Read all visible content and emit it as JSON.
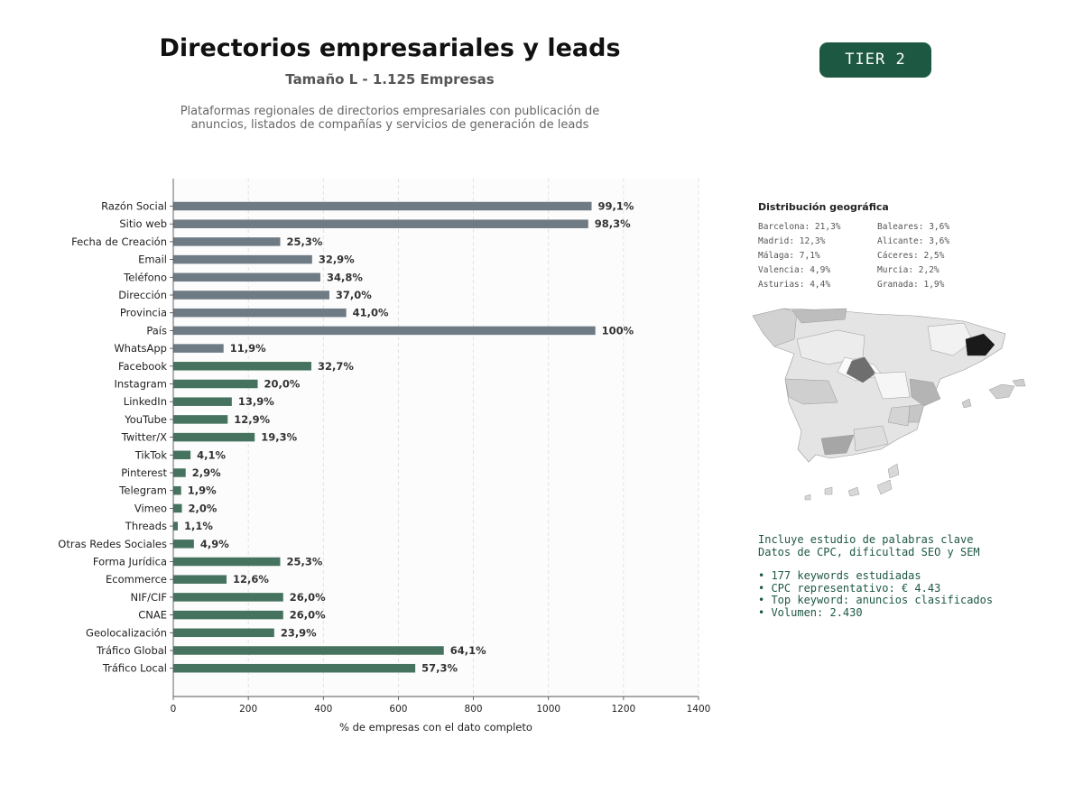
{
  "header": {
    "title": "Directorios empresariales y leads",
    "subtitle": "Tamaño L - 1.125 Empresas",
    "description_line1": "Plataformas regionales de directorios empresariales con publicación de",
    "description_line2": "anuncios, listados de compañías y servicios de generación de leads",
    "tier_badge": "TIER 2"
  },
  "chart_data": {
    "type": "bar",
    "orientation": "horizontal",
    "categories": [
      "Razón Social",
      "Sitio web",
      "Fecha de Creación",
      "Email",
      "Teléfono",
      "Dirección",
      "Provincia",
      "País",
      "WhatsApp",
      "Facebook",
      "Instagram",
      "LinkedIn",
      "YouTube",
      "Twitter/X",
      "TikTok",
      "Pinterest",
      "Telegram",
      "Vimeo",
      "Threads",
      "Otras Redes Sociales",
      "Forma Jurídica",
      "Ecommerce",
      "NIF/CIF",
      "CNAE",
      "Geolocalización",
      "Tráfico Global",
      "Tráfico Local"
    ],
    "values": [
      1115,
      1106,
      285,
      370,
      392,
      416,
      461,
      1125,
      134,
      368,
      225,
      156,
      145,
      217,
      46,
      33,
      21,
      23,
      12,
      55,
      285,
      142,
      293,
      293,
      269,
      721,
      645
    ],
    "data_labels": [
      "99,1%",
      "98,3%",
      "25,3%",
      "32,9%",
      "34,8%",
      "37,0%",
      "41,0%",
      "100%",
      "11,9%",
      "32,7%",
      "20,0%",
      "13,9%",
      "12,9%",
      "19,3%",
      "4,1%",
      "2,9%",
      "1,9%",
      "2,0%",
      "1,1%",
      "4,9%",
      "25,3%",
      "12,6%",
      "26,0%",
      "26,0%",
      "23,9%",
      "64,1%",
      "57,3%"
    ],
    "groups": [
      "basic",
      "basic",
      "basic",
      "basic",
      "basic",
      "basic",
      "basic",
      "basic",
      "basic",
      "social",
      "social",
      "social",
      "social",
      "social",
      "social",
      "social",
      "social",
      "social",
      "social",
      "social",
      "social",
      "social",
      "social",
      "social",
      "social",
      "social",
      "social"
    ],
    "group_colors": {
      "basic": "#6e7a84",
      "social": "#46735f"
    },
    "xlabel": "% de empresas con el dato completo",
    "ylabel": "",
    "xlim": [
      0,
      1400
    ],
    "xticks": [
      0,
      200,
      400,
      600,
      800,
      1000,
      1200,
      1400
    ],
    "grid": "vertical dashed"
  },
  "geo": {
    "title": "Distribución geográfica",
    "left_column": [
      "Barcelona: 21,3%",
      "Madrid: 12,3%",
      "Málaga: 7,1%",
      "Valencia: 4,9%",
      "Asturias: 4,4%"
    ],
    "right_column": [
      "Baleares: 3,6%",
      "Alicante: 3,6%",
      "Cáceres: 2,5%",
      "Murcia: 2,2%",
      "Granada: 1,9%"
    ]
  },
  "keywords": {
    "line1": "Incluye estudio de palabras clave",
    "line2": "Datos de CPC, dificultad SEO y SEM",
    "bullets": [
      "• 177 keywords estudiadas",
      "• CPC representativo: € 4.43",
      "• Top keyword: anuncios clasificados",
      "• Volumen: 2.430"
    ]
  }
}
